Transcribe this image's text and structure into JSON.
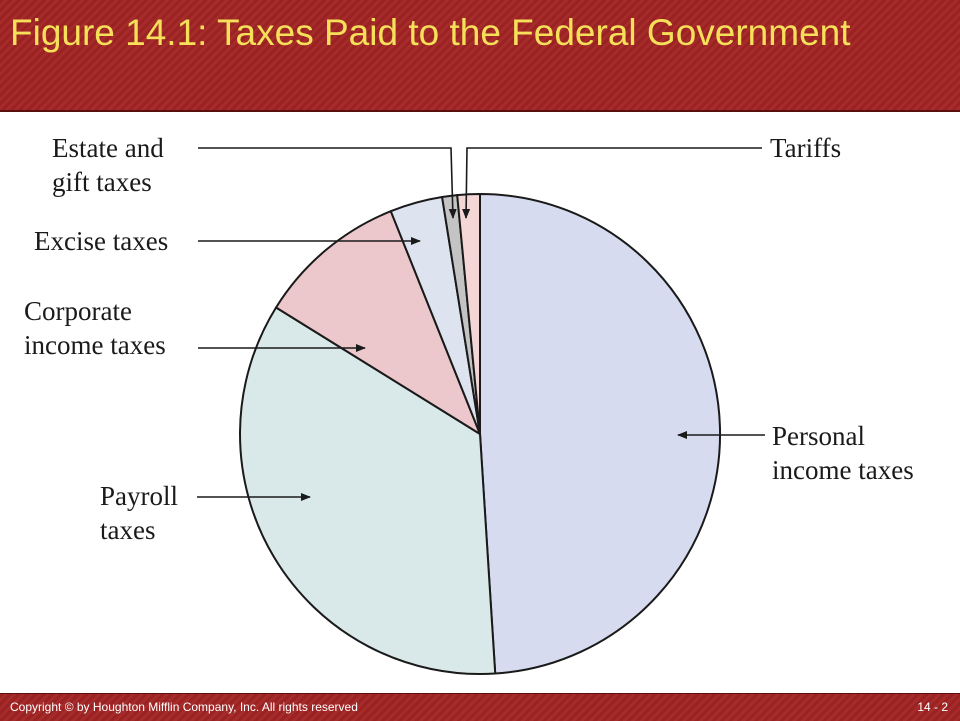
{
  "header": {
    "title": "Figure 14.1: Taxes Paid to the Federal Government",
    "bg_color": "#a32424",
    "title_color": "#f6e05a"
  },
  "chart_data": {
    "type": "pie",
    "title": "",
    "slices": [
      {
        "label_lines": [
          "Personal",
          "income taxes"
        ],
        "value": 48.5,
        "color": "#d6dbef"
      },
      {
        "label_lines": [
          "Payroll",
          "taxes"
        ],
        "value": 34.5,
        "color": "#d9e9ea"
      },
      {
        "label_lines": [
          "Corporate",
          "income taxes"
        ],
        "value": 10.0,
        "color": "#ecc8cd"
      },
      {
        "label_lines": [
          "Excise taxes"
        ],
        "value": 3.5,
        "color": "#dde3ef"
      },
      {
        "label_lines": [
          "Estate and",
          "gift taxes"
        ],
        "value": 1.0,
        "color": "#c4c4c4"
      },
      {
        "label_lines": [
          "Tariffs"
        ],
        "value": 1.5,
        "color": "#f4d6d6"
      }
    ],
    "start": "top",
    "direction": "clockwise"
  },
  "footer": {
    "copyright": "Copyright © by Houghton Mifflin Company, Inc. All rights reserved",
    "page_number": "14 - 2"
  }
}
